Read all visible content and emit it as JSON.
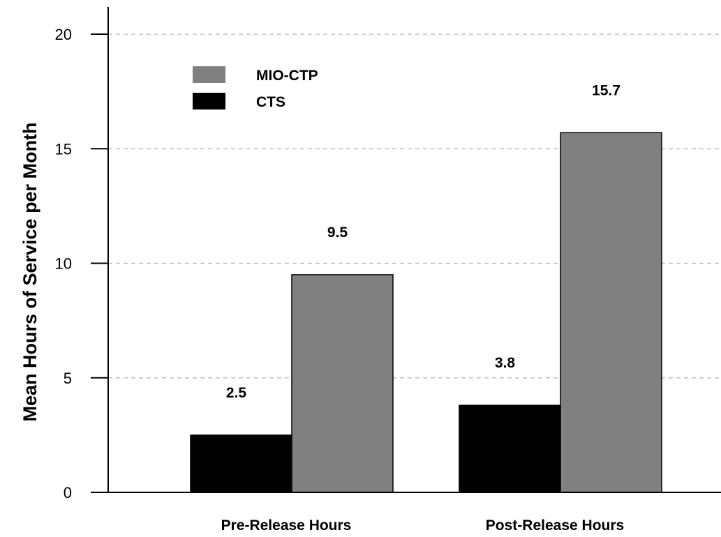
{
  "chart_data": {
    "type": "bar",
    "title": "",
    "xlabel": "",
    "ylabel": "Mean Hours of Service per Month",
    "categories": [
      "Pre-Release Hours",
      "Post-Release Hours"
    ],
    "series": [
      {
        "name": "CTS",
        "values": [
          2.5,
          3.8
        ],
        "color": "#000000"
      },
      {
        "name": "MIO-CTP",
        "values": [
          9.5,
          15.7
        ],
        "color": "#808080"
      }
    ],
    "value_labels": [
      [
        "2.5",
        "3.8"
      ],
      [
        "9.5",
        "15.7"
      ]
    ],
    "yticks": [
      0,
      5,
      10,
      15,
      20
    ],
    "ylim": [
      0,
      21.5
    ],
    "grid": "horizontal-dashed",
    "legend_position": "top-left",
    "legend_order": [
      "MIO-CTP",
      "CTS"
    ]
  }
}
